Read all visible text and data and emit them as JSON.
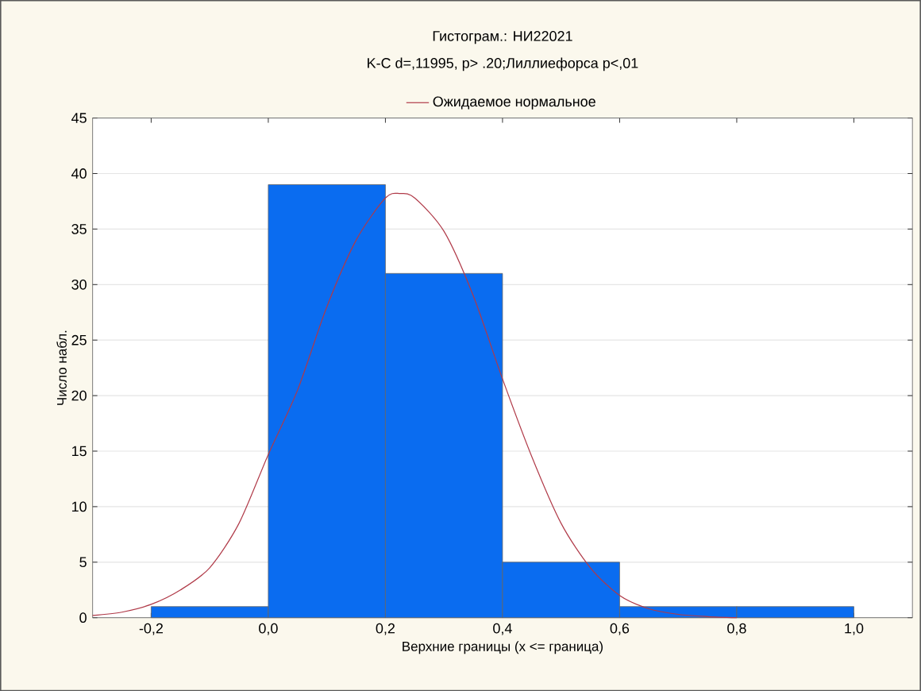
{
  "chart_data": {
    "type": "histogram",
    "title": "Гистограм.: НИ22021",
    "subtitle": "K-C d=,11995, p> .20;Лиллиефорса p<,01",
    "xlabel": "Верхние границы (x <= граница)",
    "ylabel": "Число набл.",
    "series": [
      {
        "color": "#0a6cf0",
        "bins": [
          -0.2,
          0.0,
          0.2,
          0.4,
          0.6,
          0.8,
          1.0
        ],
        "values": [
          1,
          39,
          31,
          5,
          1,
          1
        ]
      },
      {
        "type": "line",
        "name": "Ожидаемое нормальное",
        "color": "#b03a48",
        "x": [
          -0.3,
          -0.25,
          -0.2,
          -0.15,
          -0.1,
          -0.05,
          0.0,
          0.05,
          0.1,
          0.15,
          0.2,
          0.225,
          0.25,
          0.3,
          0.35,
          0.4,
          0.45,
          0.5,
          0.55,
          0.6,
          0.65,
          0.7,
          0.75,
          0.8
        ],
        "values": [
          0.2,
          0.5,
          1.2,
          2.5,
          4.5,
          8.5,
          14.7,
          20.5,
          28,
          34,
          37.8,
          38.2,
          37.8,
          34.8,
          29,
          21.5,
          14.5,
          8.5,
          4.5,
          2,
          0.8,
          0.3,
          0.1,
          0
        ]
      }
    ],
    "xlim": [
      -0.3,
      1.1
    ],
    "ylim": [
      0,
      45
    ],
    "xticks": [
      {
        "value": -0.2,
        "label": "-0,2"
      },
      {
        "value": 0.0,
        "label": "0,0"
      },
      {
        "value": 0.2,
        "label": "0,2"
      },
      {
        "value": 0.4,
        "label": "0,4"
      },
      {
        "value": 0.6,
        "label": "0,6"
      },
      {
        "value": 0.8,
        "label": "0,8"
      },
      {
        "value": 1.0,
        "label": "1,0"
      }
    ],
    "yticks": [
      0,
      5,
      10,
      15,
      20,
      25,
      30,
      35,
      40,
      45
    ],
    "grid": "y",
    "legend": "top",
    "marker": "none",
    "line_style": "solid"
  }
}
